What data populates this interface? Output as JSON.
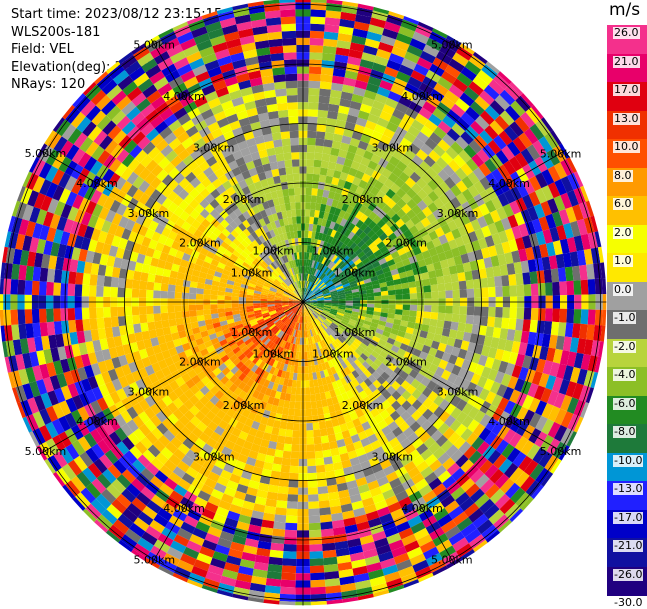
{
  "header": {
    "start_time": "Start time: 2023/08/12 23:15:15",
    "station": "WLS200s-181",
    "field": "Field: VEL",
    "elevation": "Elevation(deg): 35.30",
    "nrays": "NRays: 120"
  },
  "colorbar": {
    "unit": "m/s",
    "ticks": [
      "26.0",
      "21.0",
      "17.0",
      "13.0",
      "10.0",
      "8.0",
      "6.0",
      "2.0",
      "1.0",
      "0.0",
      "-1.0",
      "-2.0",
      "-4.0",
      "-6.0",
      "-8.0",
      "-10.0",
      "-13.0",
      "-17.0",
      "-21.0",
      "-26.0",
      "-30.0"
    ],
    "colors": [
      "#f4308c",
      "#e8006a",
      "#e00010",
      "#f03000",
      "#ff5000",
      "#ff9a00",
      "#ffc000",
      "#f6ff00",
      "#ffe800",
      "#a0a0a0",
      "#6e6e6e",
      "#b8d43c",
      "#8cbf26",
      "#228b22",
      "#1e7a3a",
      "#0096d6",
      "#2020ff",
      "#0000c8",
      "#1010a0",
      "#200080",
      "#000060"
    ]
  },
  "chart_data": {
    "type": "ppi",
    "title": "",
    "field": "VEL",
    "elevation_deg": 35.3,
    "nrays": 120,
    "range_ring_labels": [
      "1.00km",
      "2.00km",
      "3.00km",
      "4.00km",
      "5.00km"
    ],
    "range_rings_km": [
      1,
      2,
      3,
      4,
      5
    ],
    "max_range_km": 5.1,
    "colorbar_ticks": [
      26.0,
      21.0,
      17.0,
      13.0,
      10.0,
      8.0,
      6.0,
      2.0,
      1.0,
      0.0,
      -1.0,
      -2.0,
      -4.0,
      -6.0,
      -8.0,
      -10.0,
      -13.0,
      -17.0,
      -21.0,
      -26.0,
      -30.0
    ],
    "ring_label_directions": [
      "NNE",
      "ENE",
      "ESE",
      "SSE",
      "SSW",
      "WSW",
      "WNW",
      "NNW"
    ],
    "velocity_pattern": {
      "near_north_east": "negative (blue/green, -4 to -13 m/s)",
      "near_south_west": "positive (orange/red, 6 to 13 m/s)",
      "mid_range": "weak (-2 to 2 m/s, yellow/gray/green)",
      "far_range": "noise (mixed colors)"
    }
  }
}
